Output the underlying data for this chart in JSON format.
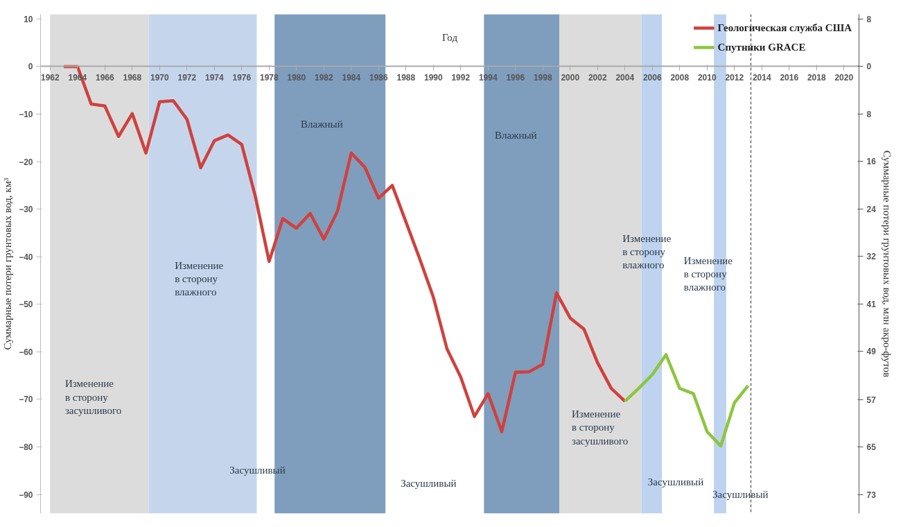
{
  "chart_data": {
    "type": "line",
    "xlabel": "Год",
    "ylabel": "Суммарные потери грунтовых вод, км³",
    "y2label": "Суммарные потери грунтовых вод, млн акро-футов",
    "xlim": [
      1961.3,
      2021.1
    ],
    "xticks": [
      1962,
      1964,
      1966,
      1968,
      1970,
      1972,
      1974,
      1976,
      1978,
      1980,
      1982,
      1984,
      1986,
      1988,
      1990,
      1992,
      1994,
      1996,
      1998,
      2000,
      2002,
      2004,
      2006,
      2008,
      2010,
      2012,
      2014,
      2016,
      2018,
      2020
    ],
    "ylim": [
      -94,
      11
    ],
    "yticks": [
      10,
      0,
      -10,
      -20,
      -30,
      -40,
      -50,
      -60,
      -70,
      -80,
      -90
    ],
    "y2lim": [
      76.2,
      -8.9
    ],
    "y2ticks": [
      {
        "value": -8.1,
        "label": "8"
      },
      0,
      {
        "value": 8.1,
        "label": "8"
      },
      {
        "value": 16.2,
        "label": "16"
      },
      {
        "value": 24.3,
        "label": "24"
      },
      {
        "value": 32.4,
        "label": "32"
      },
      {
        "value": 40.5,
        "label": "41"
      },
      {
        "value": 48.6,
        "label": "49"
      },
      {
        "value": 56.8,
        "label": "57"
      },
      {
        "value": 64.9,
        "label": "65"
      },
      {
        "value": 73.0,
        "label": "73"
      }
    ],
    "series": [
      {
        "name": "Геологическая служба США",
        "color": "#d0413d",
        "x": [
          1963,
          1964,
          1965,
          1966,
          1967,
          1968,
          1969,
          1970,
          1971,
          1972,
          1973,
          1974,
          1975,
          1976,
          1977,
          1978,
          1979,
          1980,
          1981,
          1982,
          1983,
          1984,
          1985,
          1986,
          1987,
          1988,
          1989,
          1990,
          1991,
          1992,
          1993,
          1994,
          1995,
          1996,
          1997,
          1998,
          1999,
          2000,
          2001,
          2002,
          2003,
          2004
        ],
        "values": [
          0,
          0,
          -7.9,
          -8.3,
          -14.7,
          -9.9,
          -18.2,
          -7.4,
          -7.2,
          -11.1,
          -21.3,
          -15.6,
          -14.4,
          -16.4,
          -27.4,
          -41,
          -32,
          -34,
          -30.9,
          -36.3,
          -30.4,
          -18.2,
          -21.2,
          -27.7,
          -25,
          -32.7,
          -40.4,
          -48.5,
          -59.4,
          -65.3,
          -73.6,
          -68.8,
          -76.8,
          -64.3,
          -64.2,
          -62.6,
          -47.6,
          -52.9,
          -55.2,
          -62.3,
          -67.7,
          -70.4
        ]
      },
      {
        "name": "Спутники GRACE",
        "color": "#8cc63e",
        "x": [
          2004,
          2005,
          2006,
          2007,
          2008,
          2009,
          2010,
          2011,
          2012,
          2013
        ],
        "values": [
          -70.4,
          -67.7,
          -64.8,
          -60.6,
          -67.7,
          -68.8,
          -76.8,
          -79.8,
          -70.7,
          -67.1
        ]
      }
    ],
    "bands": [
      {
        "axis": "x",
        "from": 1962,
        "to": 1969.2,
        "color": "#dcdcdc"
      },
      {
        "axis": "x",
        "from": 1969.2,
        "to": 1977.1,
        "color": "#c5d6ec"
      },
      {
        "axis": "x",
        "from": 1978.4,
        "to": 1986.5,
        "color": "#7f9dbd"
      },
      {
        "axis": "x",
        "from": 1993.7,
        "to": 1999.2,
        "color": "#7f9dbd"
      },
      {
        "axis": "x",
        "from": 1999.2,
        "to": 2005.2,
        "color": "#dcdcdc"
      },
      {
        "axis": "x",
        "from": 2005.2,
        "to": 2006.7,
        "color": "#bdd3ef"
      },
      {
        "axis": "x",
        "from": 2010.5,
        "to": 2011.4,
        "color": "#bdd3ef"
      }
    ],
    "ref_lines": [
      {
        "axis": "x",
        "value": 2013.2,
        "color": "#666666",
        "line_style": "dashed"
      }
    ],
    "annotations": [
      "Изменение\nв сторону\nзасушливого",
      "Изменение\nв сторону\nвлажного",
      "Засушливый",
      "Влажный",
      "Засушливый",
      "Влажный",
      "Изменение\nв сторону\nзасушливого",
      "Изменение\nв сторону\nвлажного",
      "Изменение\nв сторону\nвлажного",
      "Засушливый",
      "Засушливый"
    ],
    "legend": "top right",
    "grid": false,
    "marker": "none",
    "line_style": "solid"
  }
}
